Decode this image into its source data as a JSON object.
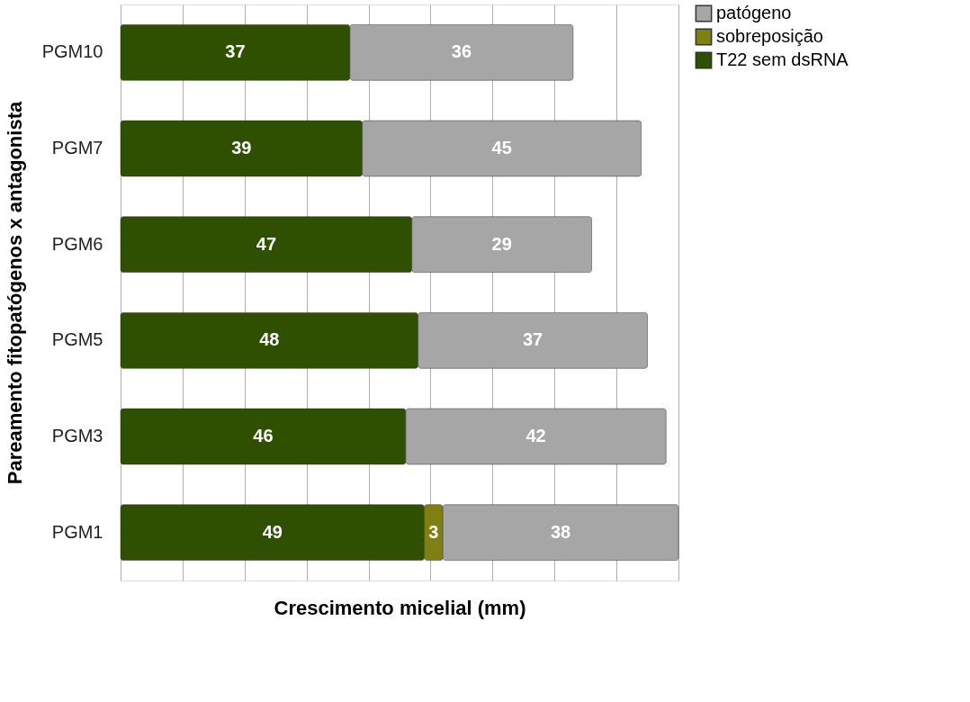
{
  "chart_data": {
    "type": "bar",
    "orientation": "horizontal",
    "stacked": true,
    "xlabel": "Crescimento micelial (mm)",
    "ylabel": "Pareamento fitopatógenos x antagonista",
    "categories": [
      "PGM10",
      "PGM7",
      "PGM6",
      "PGM5",
      "PGM3",
      "PGM1"
    ],
    "series": [
      {
        "name": "T22 sem dsRNA",
        "color": "#2e5000",
        "values": [
          37,
          39,
          47,
          48,
          46,
          49
        ]
      },
      {
        "name": "sobreposição",
        "color": "#7f7f12",
        "values": [
          null,
          null,
          null,
          null,
          null,
          3
        ]
      },
      {
        "name": "patógeno",
        "color": "#a6a6a6",
        "values": [
          36,
          45,
          29,
          37,
          42,
          38
        ]
      }
    ],
    "xlim": [
      0,
      90
    ],
    "xticks": [
      0,
      10,
      20,
      30,
      40,
      50,
      60,
      70,
      80,
      90
    ],
    "grid": "x",
    "tick_labels": "y",
    "data_labels": true,
    "legend": "right"
  }
}
